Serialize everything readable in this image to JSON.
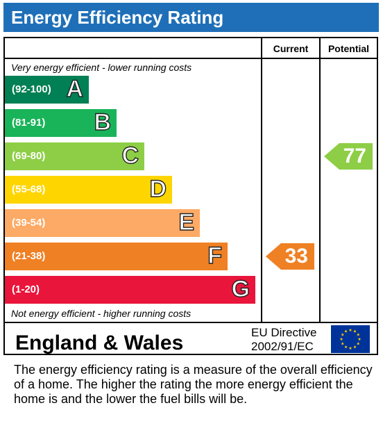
{
  "title": "Energy Efficiency Rating",
  "columns": {
    "current": "Current",
    "potential": "Potential"
  },
  "top_note": "Very energy efficient - lower running costs",
  "bottom_note": "Not energy efficient - higher running costs",
  "bands": [
    {
      "range": "(92-100)",
      "letter": "A",
      "color": "#008054"
    },
    {
      "range": "(81-91)",
      "letter": "B",
      "color": "#19b459"
    },
    {
      "range": "(69-80)",
      "letter": "C",
      "color": "#8dce46"
    },
    {
      "range": "(55-68)",
      "letter": "D",
      "color": "#ffd500"
    },
    {
      "range": "(39-54)",
      "letter": "E",
      "color": "#fcaa65"
    },
    {
      "range": "(21-38)",
      "letter": "F",
      "color": "#ef8023"
    },
    {
      "range": "(1-20)",
      "letter": "G",
      "color": "#e9153b"
    }
  ],
  "current_rating": {
    "value": "33",
    "band": "F",
    "color": "#ef8023"
  },
  "potential_rating": {
    "value": "77",
    "band": "C",
    "color": "#8dce46"
  },
  "footer": {
    "country": "England & Wales",
    "directive_line1": "EU Directive",
    "directive_line2": "2002/91/EC"
  },
  "eu_flag_icon": "eu-flag-icon",
  "description": "The energy efficiency rating is a measure of the overall efficiency of a home.  The higher the rating the more energy efficient the home is and the lower the fuel bills will be."
}
